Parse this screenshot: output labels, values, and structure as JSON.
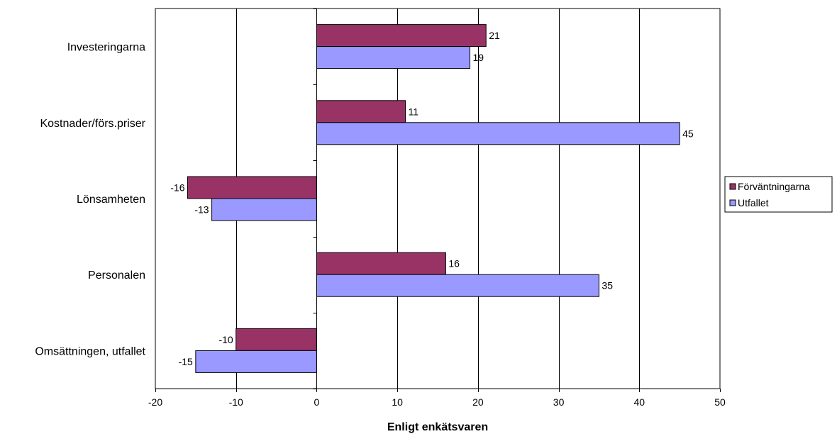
{
  "chart_data": {
    "type": "bar",
    "orientation": "horizontal",
    "categories": [
      "Investeringarna",
      "Kostnader/förs.priser",
      "Lönsamheten",
      "Personalen",
      "Omsättningen, utfallet"
    ],
    "series": [
      {
        "name": "Förväntningarna",
        "values": [
          21,
          11,
          -16,
          16,
          -10
        ],
        "labels": [
          "21",
          "11",
          "-16",
          "16",
          "-10"
        ],
        "color": "#993366"
      },
      {
        "name": "Utfallet",
        "values": [
          19,
          45,
          -13,
          35,
          -15
        ],
        "labels": [
          "19",
          "45",
          "-13",
          "35",
          "-15"
        ],
        "color": "#9999ff"
      }
    ],
    "xlabel": "Enligt enkätsvaren",
    "xlim": [
      -20,
      50
    ],
    "xticks": [
      -20,
      -10,
      0,
      10,
      20,
      30,
      40,
      50
    ],
    "xtick_labels": [
      "-20",
      "-10",
      "0",
      "10",
      "20",
      "30",
      "40",
      "50"
    ],
    "grid": "vertical",
    "legend_position": "right"
  }
}
